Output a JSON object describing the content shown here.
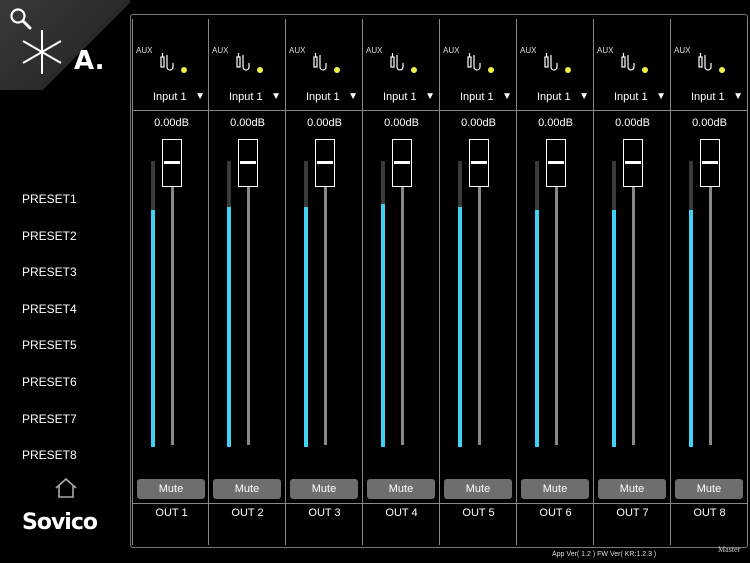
{
  "sidebar": {
    "brand": "A.",
    "presets": [
      "PRESET1",
      "PRESET2",
      "PRESET3",
      "PRESET4",
      "PRESET5",
      "PRESET6",
      "PRESET7",
      "PRESET8"
    ],
    "logo_text": "Sovico"
  },
  "mixer": {
    "channels": [
      {
        "aux": "AUX",
        "input": "Input 1",
        "level": "0.00dB",
        "meter": 0.83,
        "mute": "Mute",
        "out": "OUT 1"
      },
      {
        "aux": "AUX",
        "input": "Input 1",
        "level": "0.00dB",
        "meter": 0.84,
        "mute": "Mute",
        "out": "OUT 2"
      },
      {
        "aux": "AUX",
        "input": "Input 1",
        "level": "0.00dB",
        "meter": 0.84,
        "mute": "Mute",
        "out": "OUT 3"
      },
      {
        "aux": "AUX",
        "input": "Input 1",
        "level": "0.00dB",
        "meter": 0.85,
        "mute": "Mute",
        "out": "OUT 4"
      },
      {
        "aux": "AUX",
        "input": "Input 1",
        "level": "0.00dB",
        "meter": 0.84,
        "mute": "Mute",
        "out": "OUT 5"
      },
      {
        "aux": "AUX",
        "input": "Input 1",
        "level": "0.00dB",
        "meter": 0.83,
        "mute": "Mute",
        "out": "OUT 6"
      },
      {
        "aux": "AUX",
        "input": "Input 1",
        "level": "0.00dB",
        "meter": 0.83,
        "mute": "Mute",
        "out": "OUT 7"
      },
      {
        "aux": "AUX",
        "input": "Input 1",
        "level": "0.00dB",
        "meter": 0.83,
        "mute": "Mute",
        "out": "OUT 8"
      }
    ]
  },
  "footer": {
    "version": "App Ver( 1.2 ) FW Ver( KR:1.2.3 )",
    "master": "Master"
  },
  "colors": {
    "meter": "#3fd2f5",
    "led": "#f0f34a",
    "mute_bg": "#6e6e6e"
  }
}
